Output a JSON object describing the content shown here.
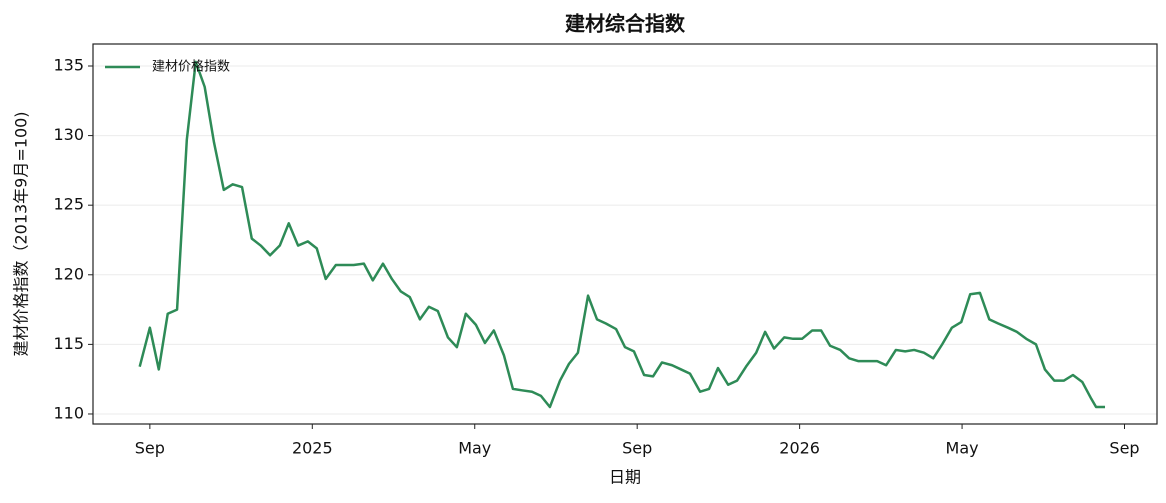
{
  "chart_data": {
    "type": "line",
    "title": "建材综合指数",
    "x_label": "日期",
    "y_label": "建材价格指数（2013年9月=100)",
    "x": [
      -0.25,
      0,
      0.22,
      0.44,
      0.67,
      0.91,
      1.13,
      1.35,
      1.58,
      1.82,
      2.04,
      2.27,
      2.51,
      2.73,
      2.96,
      3.2,
      3.42,
      3.65,
      3.89,
      4.11,
      4.33,
      4.58,
      4.8,
      5.02,
      5.27,
      5.49,
      5.74,
      5.96,
      6.18,
      6.4,
      6.65,
      6.87,
      7.09,
      7.34,
      7.56,
      7.78,
      8.03,
      8.25,
      8.47,
      8.72,
      8.94,
      9.16,
      9.41,
      9.63,
      9.85,
      10.1,
      10.32,
      10.54,
      10.79,
      11.01,
      11.23,
      11.48,
      11.7,
      11.92,
      12.17,
      12.39,
      12.61,
      12.86,
      13.08,
      13.3,
      13.55,
      13.77,
      13.99,
      14.24,
      14.46,
      14.68,
      14.93,
      15.15,
      15.37,
      15.62,
      15.84,
      16.06,
      16.31,
      16.53,
      16.75,
      17,
      17.22,
      17.44,
      17.68,
      17.91,
      18.13,
      18.37,
      18.6,
      18.82,
      19.06,
      19.29,
      19.51,
      19.75,
      19.98,
      20.2,
      20.44,
      20.67,
      20.89,
      21.13,
      21.35,
      21.58,
      21.82,
      22.04,
      22.27,
      22.51,
      22.73,
      22.96,
      23.18,
      23.3,
      23.52
    ],
    "series": [
      {
        "name": "建材价格指数",
        "color": "#2e8b57",
        "values": [
          113.4,
          116.2,
          113.2,
          117.2,
          117.5,
          129.7,
          135.3,
          133.5,
          129.5,
          126.1,
          126.5,
          126.3,
          122.6,
          122.1,
          121.4,
          122.1,
          123.7,
          122.1,
          122.4,
          121.9,
          119.7,
          120.7,
          120.7,
          120.7,
          120.8,
          119.6,
          120.8,
          119.7,
          118.8,
          118.4,
          116.8,
          117.7,
          117.4,
          115.5,
          114.8,
          117.2,
          116.4,
          115.1,
          116.0,
          114.2,
          111.8,
          111.7,
          111.6,
          111.3,
          110.5,
          112.4,
          113.6,
          114.4,
          118.5,
          116.8,
          116.5,
          116.1,
          114.8,
          114.5,
          112.8,
          112.7,
          113.7,
          113.5,
          113.2,
          112.9,
          111.6,
          111.8,
          113.3,
          112.1,
          112.4,
          113.4,
          114.4,
          115.9,
          114.7,
          115.5,
          115.4,
          115.4,
          116.0,
          116.0,
          114.9,
          114.6,
          114.0,
          113.8,
          113.8,
          113.8,
          113.5,
          114.6,
          114.5,
          114.6,
          114.4,
          114.0,
          115.0,
          116.2,
          116.6,
          118.6,
          118.7,
          116.8,
          116.5,
          116.2,
          115.9,
          115.4,
          115.0,
          113.2,
          112.4,
          112.4,
          112.8,
          112.3,
          111.1,
          110.5,
          110.5
        ]
      }
    ],
    "xlim": [
      -1.4,
      24.8
    ],
    "xticks": [
      {
        "value": 0,
        "label": "Sep"
      },
      {
        "value": 4,
        "label": "2025"
      },
      {
        "value": 8,
        "label": "May"
      },
      {
        "value": 12,
        "label": "Sep"
      },
      {
        "value": 16,
        "label": "2026"
      },
      {
        "value": 20,
        "label": "May"
      },
      {
        "value": 24,
        "label": "Sep"
      }
    ],
    "ylim": [
      109.28,
      136.58
    ],
    "yticks": [
      110,
      115,
      120,
      125,
      130,
      135
    ],
    "grid": true,
    "legend": "upper-left"
  }
}
